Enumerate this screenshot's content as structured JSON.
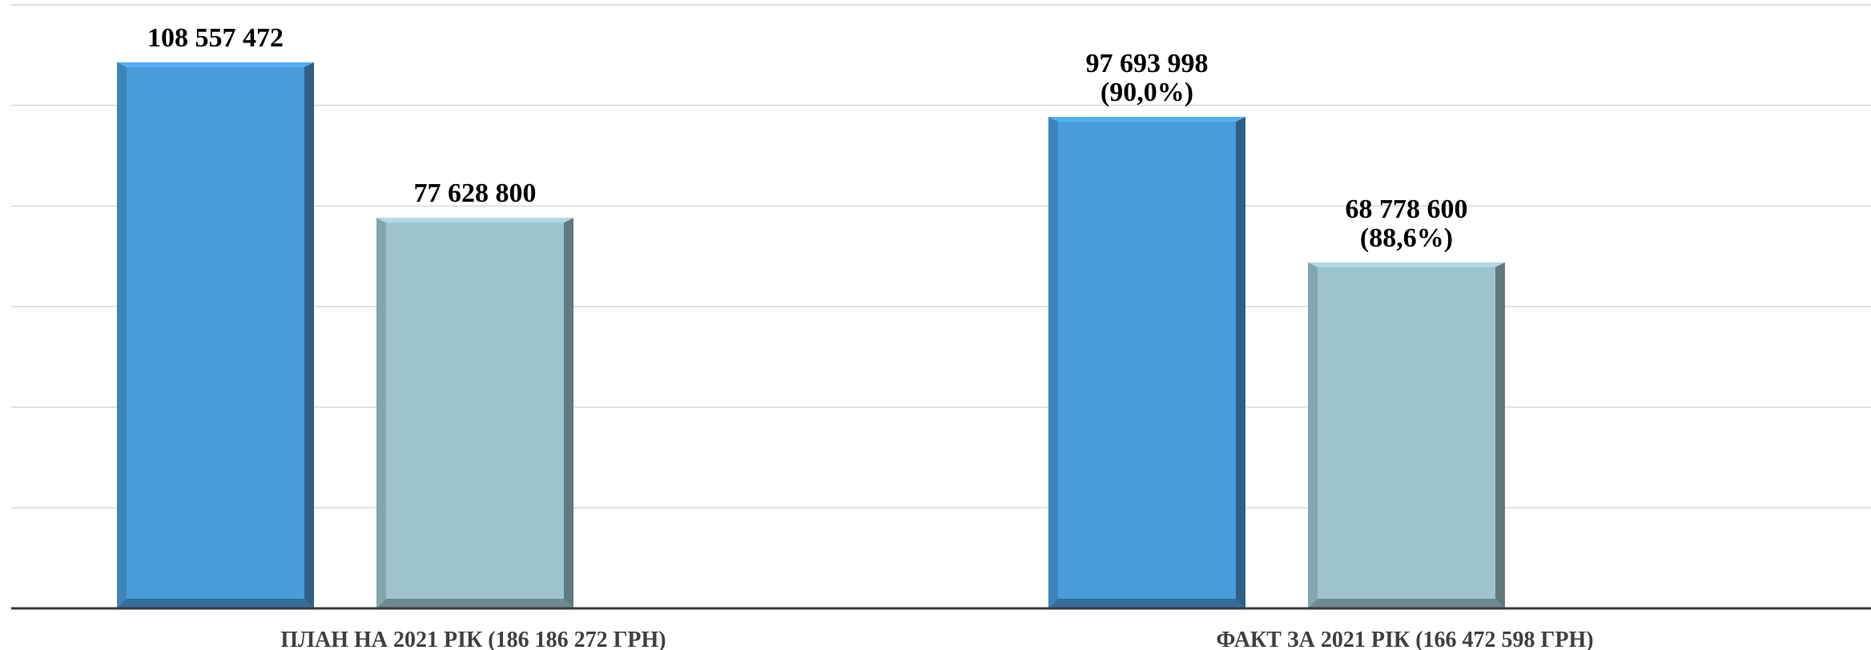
{
  "chart_data": {
    "type": "bar",
    "categories": [
      "ПЛАН НА 2021 РІК (186 186 272 ГРН)",
      "ФАКТ ЗА 2021 РІК (166 472 598 ГРН)"
    ],
    "series": [
      {
        "values": [
          108557472,
          97693998
        ],
        "labels": [
          "108 557 472",
          "97 693 998\n(90,0%)"
        ],
        "color": "#4a9bd9"
      },
      {
        "values": [
          77628800,
          68778600
        ],
        "labels": [
          "77 628 800",
          "68 778 600\n(88,6%)"
        ],
        "color": "#9dc3cc"
      }
    ],
    "ylim": [
      0,
      120000000
    ],
    "grid": true,
    "legend": "none"
  }
}
